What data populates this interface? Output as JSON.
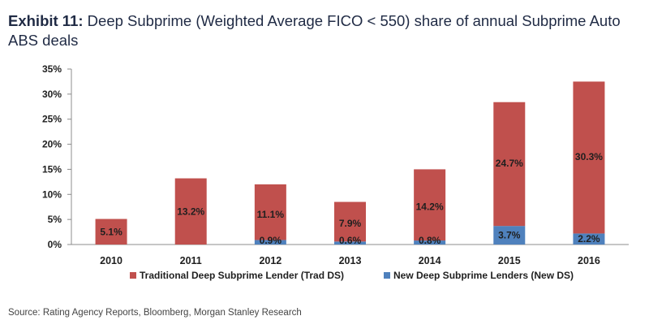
{
  "title": {
    "exhibit": "Exhibit 11:",
    "text": "Deep Subprime (Weighted Average FICO < 550) share of annual Subprime Auto ABS deals"
  },
  "chart_data": {
    "type": "bar",
    "stacked": true,
    "categories": [
      "2010",
      "2011",
      "2012",
      "2013",
      "2014",
      "2015",
      "2016"
    ],
    "series": [
      {
        "name": "Traditional Deep Subprime Lender (Trad DS)",
        "color": "#c0504d",
        "values": [
          5.1,
          13.2,
          11.1,
          7.9,
          14.2,
          24.7,
          30.3
        ],
        "labels": [
          "5.1%",
          "13.2%",
          "11.1%",
          "7.9%",
          "14.2%",
          "24.7%",
          "30.3%"
        ]
      },
      {
        "name": "New Deep Subprime Lenders (New DS)",
        "color": "#4f81bd",
        "values": [
          0,
          0,
          0.9,
          0.6,
          0.8,
          3.7,
          2.2
        ],
        "labels": [
          "",
          "",
          "0.9%",
          "0.6%",
          "0.8%",
          "3.7%",
          "2.2%"
        ]
      }
    ],
    "yticks": [
      "0%",
      "5%",
      "10%",
      "15%",
      "20%",
      "25%",
      "30%",
      "35%"
    ],
    "ylim": [
      0,
      35
    ],
    "xlabel": "",
    "ylabel": "",
    "legend_position": "bottom"
  },
  "source": "Source: Rating Agency Reports, Bloomberg, Morgan Stanley Research"
}
